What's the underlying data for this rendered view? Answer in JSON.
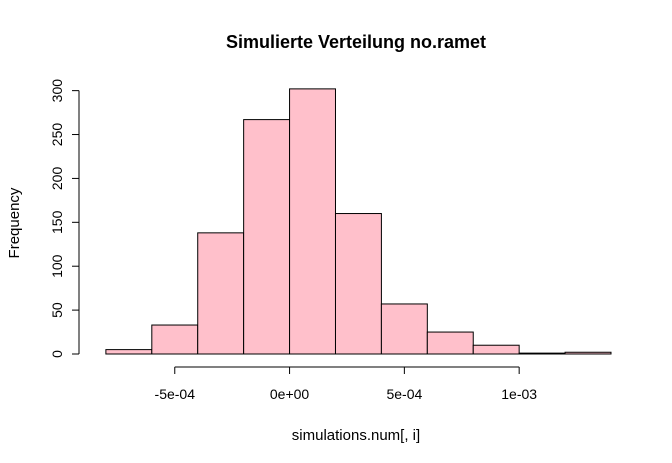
{
  "chart_data": {
    "type": "bar",
    "title": "Simulierte Verteilung no.ramet",
    "xlabel": "simulations.num[, i]",
    "ylabel": "Frequency",
    "bar_color": "#FFC0CB",
    "bar_border_color": "#000000",
    "x_tick_values": [
      -0.0005,
      0,
      0.0005,
      0.001
    ],
    "x_tick_labels": [
      "-5e-04",
      "0e+00",
      "5e-04",
      "1e-03"
    ],
    "y_tick_values": [
      0,
      50,
      100,
      150,
      200,
      250,
      300
    ],
    "y_tick_labels": [
      "0",
      "50",
      "100",
      "150",
      "200",
      "250",
      "300"
    ],
    "xlim": [
      -0.00083,
      0.0014
    ],
    "ylim": [
      0,
      303
    ],
    "grid": false,
    "bins": [
      {
        "x0": -0.0008,
        "x1": -0.0006,
        "value": 5
      },
      {
        "x0": -0.0006,
        "x1": -0.0004,
        "value": 33
      },
      {
        "x0": -0.0004,
        "x1": -0.0002,
        "value": 138
      },
      {
        "x0": -0.0002,
        "x1": 0.0,
        "value": 267
      },
      {
        "x0": 0.0,
        "x1": 0.0002,
        "value": 302
      },
      {
        "x0": 0.0002,
        "x1": 0.0004,
        "value": 160
      },
      {
        "x0": 0.0004,
        "x1": 0.0006,
        "value": 57
      },
      {
        "x0": 0.0006,
        "x1": 0.0008,
        "value": 25
      },
      {
        "x0": 0.0008,
        "x1": 0.001,
        "value": 10
      },
      {
        "x0": 0.001,
        "x1": 0.0012,
        "value": 1
      },
      {
        "x0": 0.0012,
        "x1": 0.0014,
        "value": 2
      }
    ]
  }
}
